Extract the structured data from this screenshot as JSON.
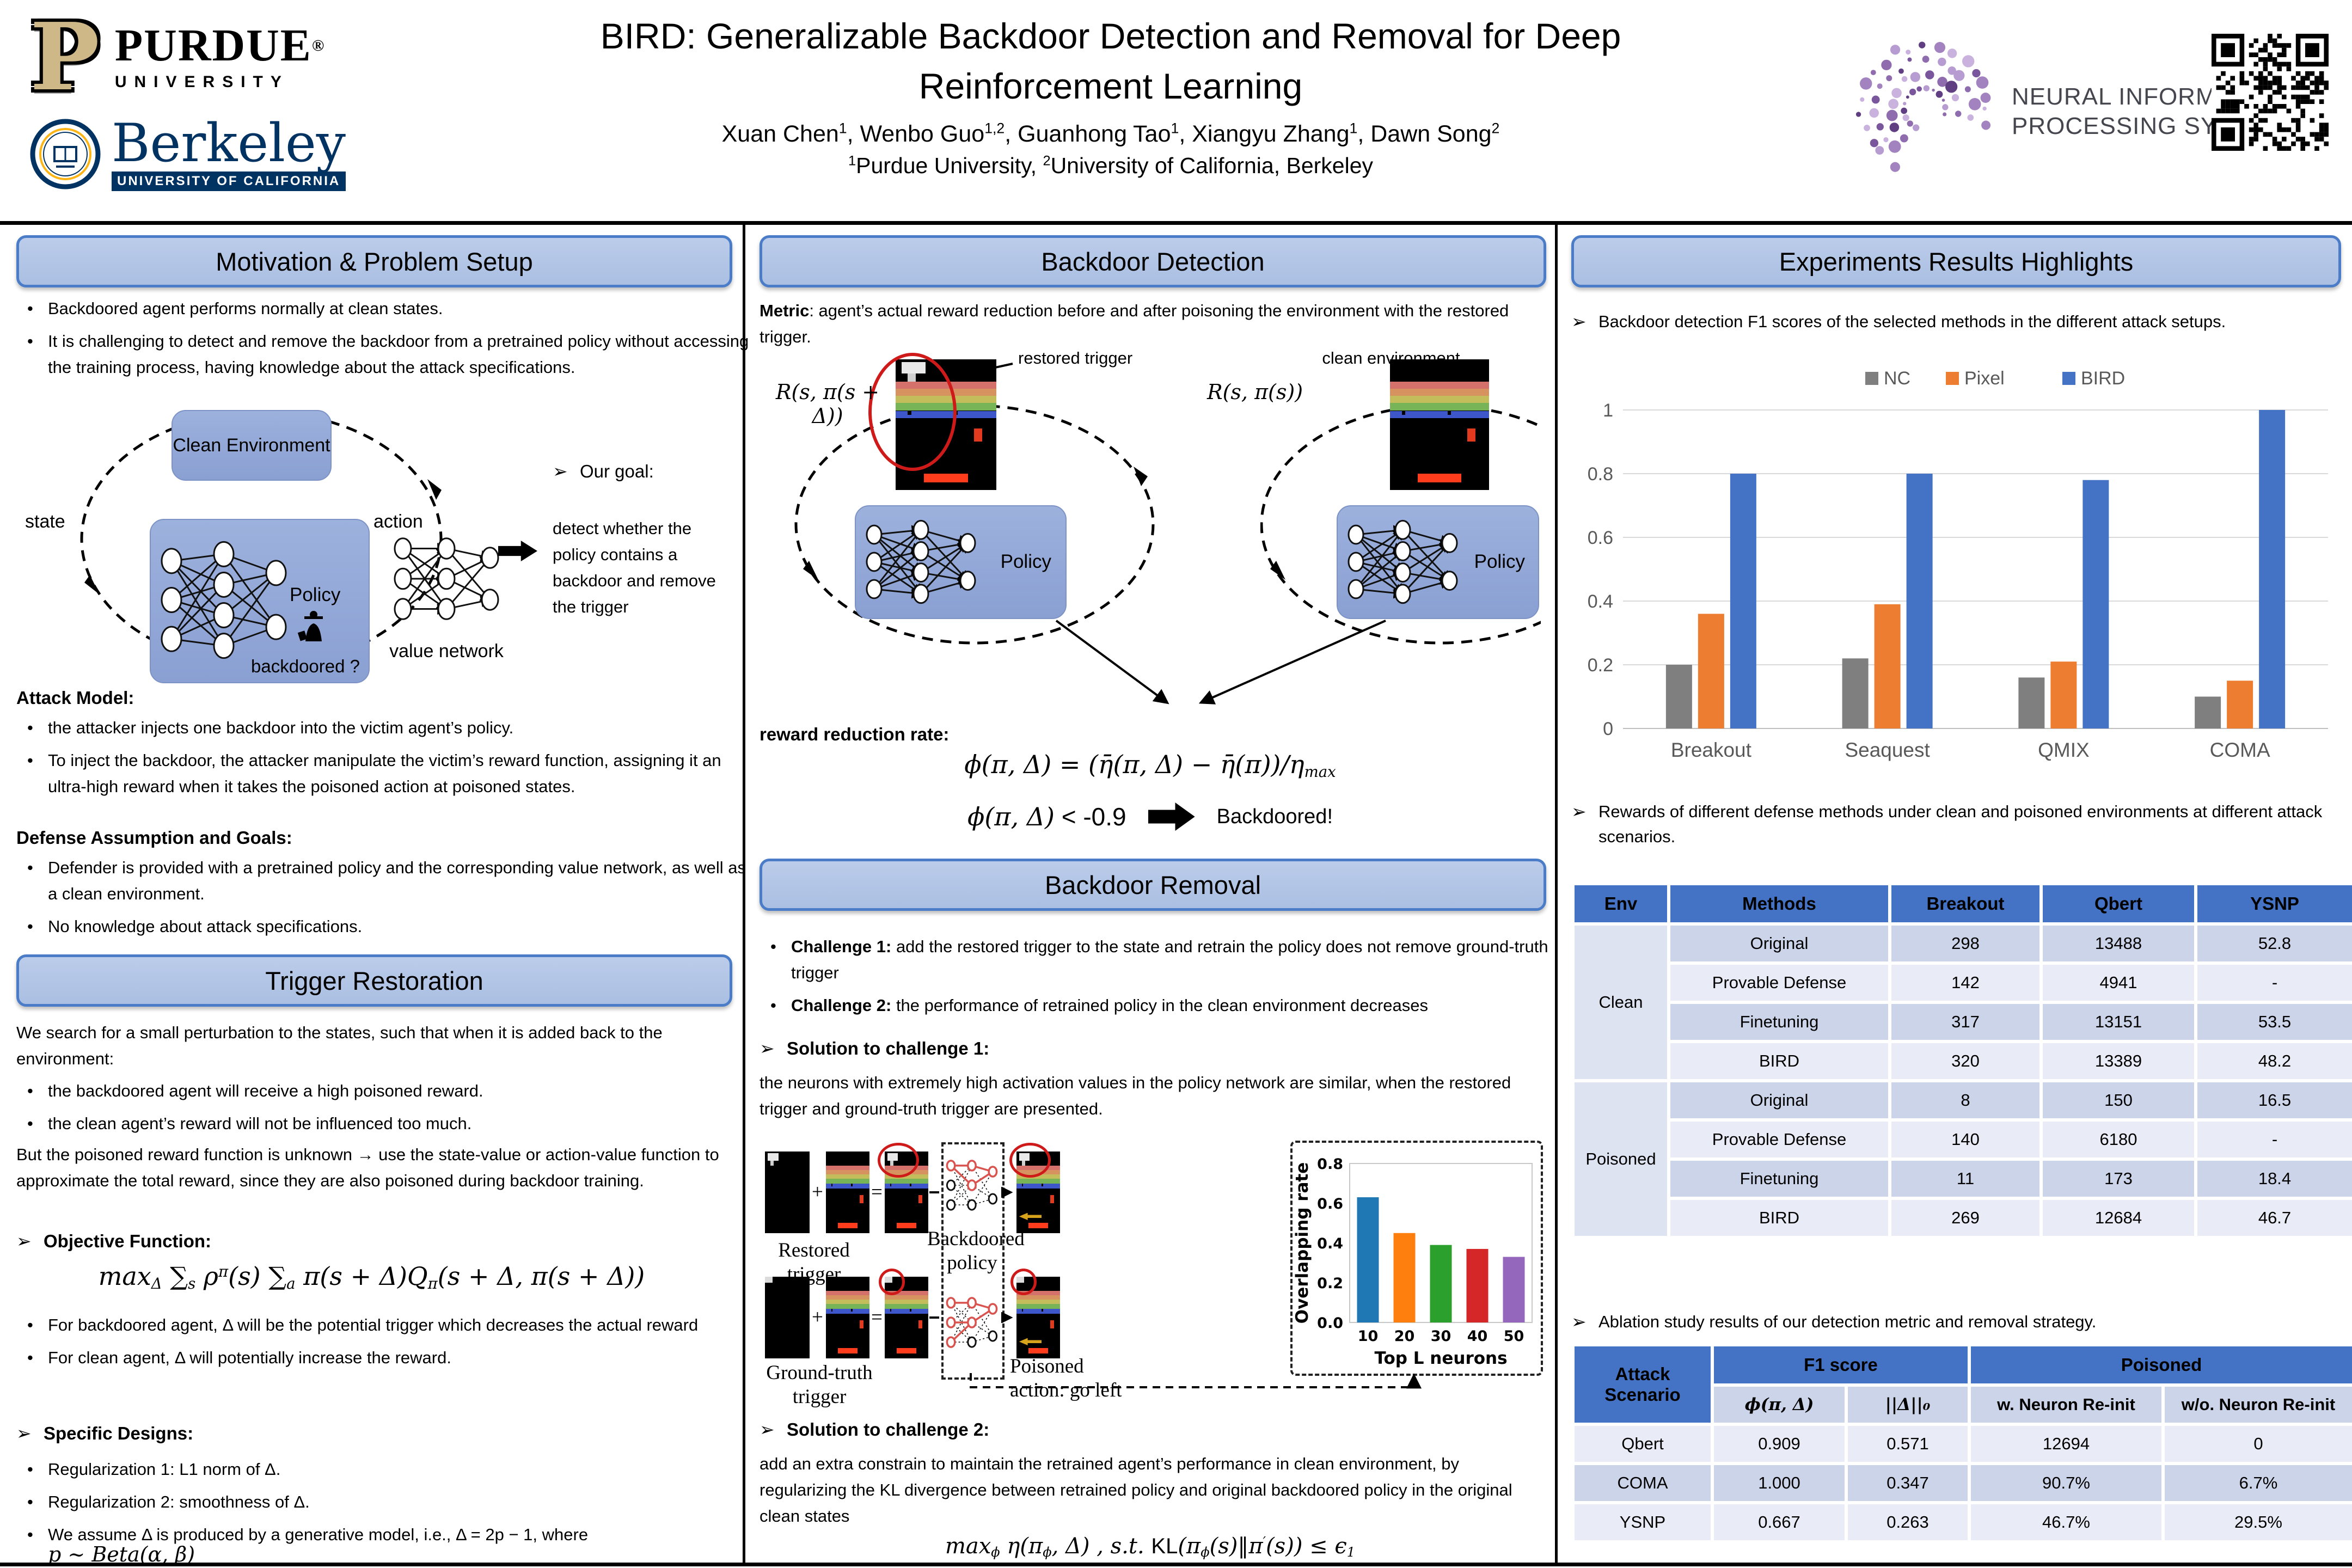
{
  "header": {
    "title_line1": "BIRD: Generalizable Backdoor Detection and Removal for Deep",
    "title_line2": "Reinforcement Learning",
    "authors_parts": [
      {
        "t": "Xuan Chen",
        "k": "n"
      },
      {
        "t": "1",
        "k": "sup"
      },
      {
        "t": ", Wenbo Guo",
        "k": "n"
      },
      {
        "t": "1,2",
        "k": "sup"
      },
      {
        "t": ", Guanhong Tao",
        "k": "n"
      },
      {
        "t": "1",
        "k": "sup"
      },
      {
        "t": ", Xiangyu Zhang",
        "k": "n"
      },
      {
        "t": "1",
        "k": "sup"
      },
      {
        "t": ", Dawn Song",
        "k": "n"
      },
      {
        "t": "2",
        "k": "sup"
      }
    ],
    "affiliation_parts": [
      {
        "t": "1",
        "k": "sup"
      },
      {
        "t": "Purdue University,  ",
        "k": "n"
      },
      {
        "t": "2",
        "k": "sup"
      },
      {
        "t": "University of California, Berkeley",
        "k": "n"
      }
    ],
    "purdue": {
      "mark": "P",
      "word": "PURDUE",
      "sub": "UNIVERSITY",
      "reg": "®"
    },
    "berkeley": {
      "word": "Berkeley",
      "sub": "UNIVERSITY OF CALIFORNIA"
    },
    "neurips": {
      "line1": "NEURAL INFORMATION",
      "line2": "PROCESSING SYSTEMS"
    }
  },
  "left": {
    "section1_title": "Motivation & Problem Setup",
    "bullets": [
      "Backdoored agent performs normally at clean states.",
      "It is challenging to detect and remove the backdoor from a pretrained policy without accessing the training process, having knowledge about the attack specifications."
    ],
    "diagram": {
      "clean_env": "Clean Environment",
      "state": "state",
      "action": "action",
      "policy": "Policy",
      "backdoored": "backdoored ?",
      "value_network": "value network",
      "goal_title": "Our goal:",
      "goal_text": "detect whether the policy contains a backdoor and remove the trigger"
    },
    "attack_title": "Attack Model:",
    "attack_bullets": [
      "the attacker injects one backdoor into the victim agent’s policy.",
      "To inject the backdoor, the attacker manipulate the victim’s reward function, assigning it an ultra-high reward when it takes the poisoned action at poisoned states."
    ],
    "defense_title": "Defense Assumption and Goals:",
    "defense_bullets": [
      "Defender is provided with a pretrained policy and the corresponding value network, as well as a clean environment.",
      "No knowledge about attack specifications."
    ],
    "section2_title": "Trigger Restoration",
    "restoration_intro": "We search for a small perturbation to the states, such that when it is added back to the environment:",
    "restoration_bullets": [
      "the backdoored agent will receive a high poisoned reward.",
      "the clean agent’s reward will not be influenced too much."
    ],
    "restoration_note": "But the poisoned reward function is unknown → use the state-value or action-value function to approximate the total reward, since they are also poisoned during backdoor training.",
    "objective_title": "Objective Function:",
    "objective_parts": [
      {
        "t": "max",
        "k": "n"
      },
      {
        "t": "Δ",
        "k": "sub"
      },
      {
        "t": " ∑",
        "k": "n"
      },
      {
        "t": "s",
        "k": "sub"
      },
      {
        "t": " ρ",
        "k": "n"
      },
      {
        "t": "π",
        "k": "sup"
      },
      {
        "t": "(s) ∑",
        "k": "n"
      },
      {
        "t": "a",
        "k": "sub"
      },
      {
        "t": " π(s + Δ)Q",
        "k": "n"
      },
      {
        "t": "π",
        "k": "sub"
      },
      {
        "t": "(s + Δ, π(s + Δ))",
        "k": "n"
      }
    ],
    "objective_bullets": [
      "For backdoored agent, Δ will be the potential trigger which decreases the actual reward",
      "For clean agent, Δ will potentially increase the reward."
    ],
    "designs_title": "Specific Designs:",
    "designs_bullets": [
      "Regularization 1: L1 norm of Δ.",
      "Regularization 2: smoothness of Δ.",
      "We assume Δ is produced by a generative model, i.e., Δ = 2p − 1, where"
    ],
    "designs_tail": "p ~ Beta(α, β)"
  },
  "middle": {
    "section1_title": "Backdoor Detection",
    "metric_bold": "Metric",
    "metric_rest": ": agent’s actual reward reduction before and after poisoning the environment with the restored trigger.",
    "restored_trigger_label": "restored trigger",
    "clean_env_label": "clean environment",
    "r_poisoned_parts": [
      {
        "t": "R(s, π(s + Δ))",
        "k": "n"
      }
    ],
    "r_clean_parts": [
      {
        "t": "R(s, π(s))",
        "k": "n"
      }
    ],
    "policy": "Policy",
    "rate_label": "reward reduction rate:",
    "rate_parts": [
      {
        "t": "ϕ(π, Δ) = (η̄(π, Δ) − η̄(π))/η",
        "k": "n"
      },
      {
        "t": "max",
        "k": "sub"
      }
    ],
    "threshold_parts": [
      {
        "t": "ϕ(π, Δ)",
        "k": "n"
      },
      {
        "t": " < -0.9",
        "k": "rm"
      }
    ],
    "backdoored_label": "Backdoored!",
    "section2_title": "Backdoor Removal",
    "challenges": [
      {
        "bold": "Challenge 1:",
        "rest": " add the restored trigger to the state and retrain the policy does not remove ground-truth trigger"
      },
      {
        "bold": "Challenge 2:",
        "rest": " the performance of retrained policy in the clean environment decreases"
      }
    ],
    "solution1_title": "Solution to challenge 1:",
    "solution1_text": "the neurons with extremely high activation values in the policy network are similar, when the restored trigger and ground-truth trigger are presented.",
    "removal": {
      "restored_label": "Restored trigger",
      "ground_label": "Ground-truth trigger",
      "policy_label_1": "Backdoored",
      "policy_label_2": "policy",
      "poisoned_label_1": "Poisoned",
      "poisoned_label_2": "action: go left",
      "plus": "+",
      "equals": "="
    },
    "solution2_title": "Solution to challenge 2:",
    "solution2_text": "add an extra constrain to maintain the retrained agent’s performance in clean environment, by regularizing the KL divergence between retrained policy and original backdoored policy in the original clean states",
    "constraint_parts": [
      {
        "t": "max",
        "k": "n"
      },
      {
        "t": "ϕ",
        "k": "sub"
      },
      {
        "t": " η(π",
        "k": "n"
      },
      {
        "t": "ϕ",
        "k": "sub"
      },
      {
        "t": ", Δ) , s.t. ",
        "k": "n"
      },
      {
        "t": "KL",
        "k": "rm"
      },
      {
        "t": "(π",
        "k": "n"
      },
      {
        "t": "ϕ",
        "k": "sub"
      },
      {
        "t": "(s)‖π",
        "k": "n"
      },
      {
        "t": "′",
        "k": "sup"
      },
      {
        "t": "(s)) ≤ ϵ",
        "k": "n"
      },
      {
        "t": "1",
        "k": "sub"
      }
    ]
  },
  "right": {
    "section_title": "Experiments Results Highlights",
    "bullet1": "Backdoor detection F1 scores of the selected methods in the different attack setups.",
    "bullet2": "Rewards of different defense methods under clean and poisoned environments at different attack scenarios.",
    "bullet3": "Ablation study results of our detection metric and removal strategy.",
    "table1": {
      "headers": [
        "Env",
        "Methods",
        "Breakout",
        "Qbert",
        "YSNP"
      ],
      "groups": [
        {
          "env": "Clean",
          "rows": [
            [
              "Original",
              "298",
              "13488",
              "52.8"
            ],
            [
              "Provable Defense",
              "142",
              "4941",
              "-"
            ],
            [
              "Finetuning",
              "317",
              "13151",
              "53.5"
            ],
            [
              "BIRD",
              "320",
              "13389",
              "48.2"
            ]
          ]
        },
        {
          "env": "Poisoned",
          "rows": [
            [
              "Original",
              "8",
              "150",
              "16.5"
            ],
            [
              "Provable Defense",
              "140",
              "6180",
              "-"
            ],
            [
              "Finetuning",
              "11",
              "173",
              "18.4"
            ],
            [
              "BIRD",
              "269",
              "12684",
              "46.7"
            ]
          ]
        }
      ]
    },
    "table2": {
      "corner": "Attack Scenario",
      "group1": "F1 score",
      "group2": "Poisoned",
      "sub": [
        "ϕ(π, Δ)",
        "||Δ||₀",
        "w. Neuron Re-init",
        "w/o. Neuron Re-init"
      ],
      "rows": [
        [
          "Qbert",
          "0.909",
          "0.571",
          "12694",
          "0"
        ],
        [
          "COMA",
          "1.000",
          "0.347",
          "90.7%",
          "6.7%"
        ],
        [
          "YSNP",
          "0.667",
          "0.263",
          "46.7%",
          "29.5%"
        ]
      ]
    }
  },
  "chart_data": [
    {
      "type": "bar",
      "title": "Backdoor detection F1 scores of the selected methods in the different attack setups",
      "categories": [
        "Breakout",
        "Seaquest",
        "QMIX",
        "COMA"
      ],
      "series": [
        {
          "name": "NC",
          "color": "#7f7f7f",
          "values": [
            0.2,
            0.22,
            0.16,
            0.1
          ]
        },
        {
          "name": "Pixel",
          "color": "#ed7d31",
          "values": [
            0.36,
            0.39,
            0.21,
            0.15
          ]
        },
        {
          "name": "BIRD",
          "color": "#4472c4",
          "values": [
            0.8,
            0.8,
            0.78,
            1.0
          ]
        }
      ],
      "ylim": [
        0,
        1
      ],
      "yticks": [
        "0",
        "0.2",
        "0.4",
        "0.6",
        "0.8",
        "1"
      ],
      "legend_position": "top",
      "grid": true
    },
    {
      "type": "bar",
      "categories": [
        "10",
        "20",
        "30",
        "40",
        "50"
      ],
      "values": [
        0.63,
        0.45,
        0.39,
        0.37,
        0.33
      ],
      "colors": [
        "#1f77b4",
        "#ff7f0e",
        "#2ca02c",
        "#d62728",
        "#9467bd"
      ],
      "xlabel": "Top L neurons",
      "ylabel": "Overlapping rate",
      "ylim": [
        0,
        0.8
      ],
      "yticks": [
        "0.0",
        "0.2",
        "0.4",
        "0.6",
        "0.8"
      ],
      "grid": false
    }
  ]
}
